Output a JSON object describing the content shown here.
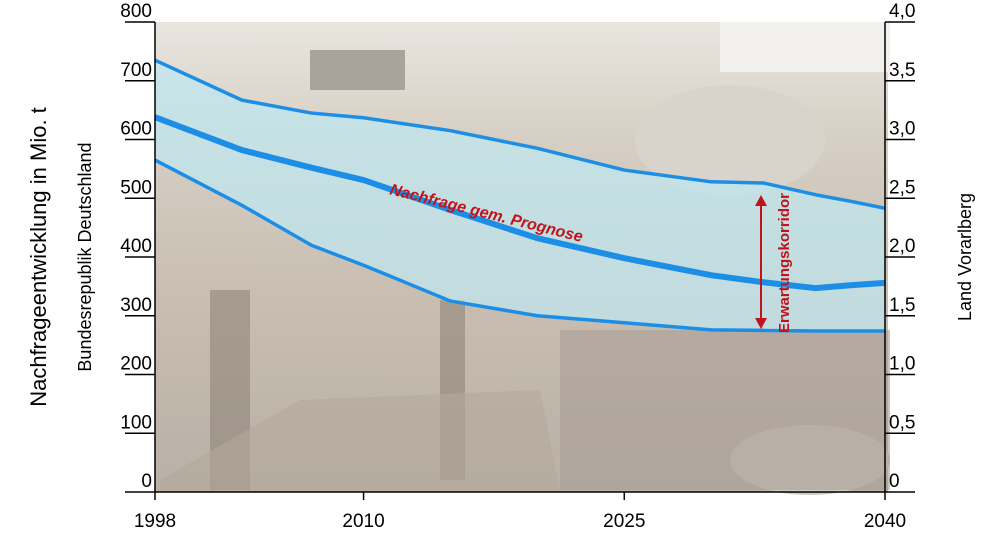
{
  "chart_data": {
    "type": "line",
    "ylabel": "Nachfrageentwicklung in Mio. t",
    "ylabel_sub": "Bundesrepublik Deutschland",
    "y2label": "Land Vorarlberg",
    "annotations": [
      "Nachfrage gem. Prognose",
      "Erwartungskorridor"
    ],
    "x": [
      1998,
      2003,
      2007,
      2010,
      2015,
      2020,
      2025,
      2030,
      2033,
      2036,
      2038,
      2040
    ],
    "series": [
      {
        "color": "#1c8ee6",
        "values": [
          735,
          667,
          645,
          637,
          615,
          585,
          548,
          528,
          526,
          506,
          495,
          483
        ]
      },
      {
        "color": "#1c8ee6",
        "values": [
          638,
          582,
          552,
          531,
          480,
          432,
          398,
          369,
          357,
          347,
          352,
          356
        ]
      },
      {
        "color": "#1c8ee6",
        "values": [
          565,
          488,
          420,
          386,
          325,
          300,
          288,
          276,
          275,
          274,
          274,
          274
        ]
      }
    ],
    "corridor_color": "#bfe8f2",
    "annotation_color": "#c0141c",
    "xlim": [
      1998,
      2040
    ],
    "xticks": [
      1998,
      2010,
      2025,
      2040
    ],
    "ylim": [
      0,
      800
    ],
    "yticks": [
      0,
      100,
      200,
      300,
      400,
      500,
      600,
      700,
      800
    ],
    "y2lim": [
      0,
      4
    ],
    "y2ticks": [
      0,
      {
        "value": 0.5,
        "label": "0,5"
      },
      {
        "value": 1,
        "label": "1,0"
      },
      {
        "value": 1.5,
        "label": "1,5"
      },
      {
        "value": 2,
        "label": "2,0"
      },
      {
        "value": 2.5,
        "label": "2,5"
      },
      {
        "value": 3,
        "label": "3,0"
      },
      {
        "value": 3.5,
        "label": "3,5"
      },
      {
        "value": 4,
        "label": "4,0"
      }
    ]
  }
}
